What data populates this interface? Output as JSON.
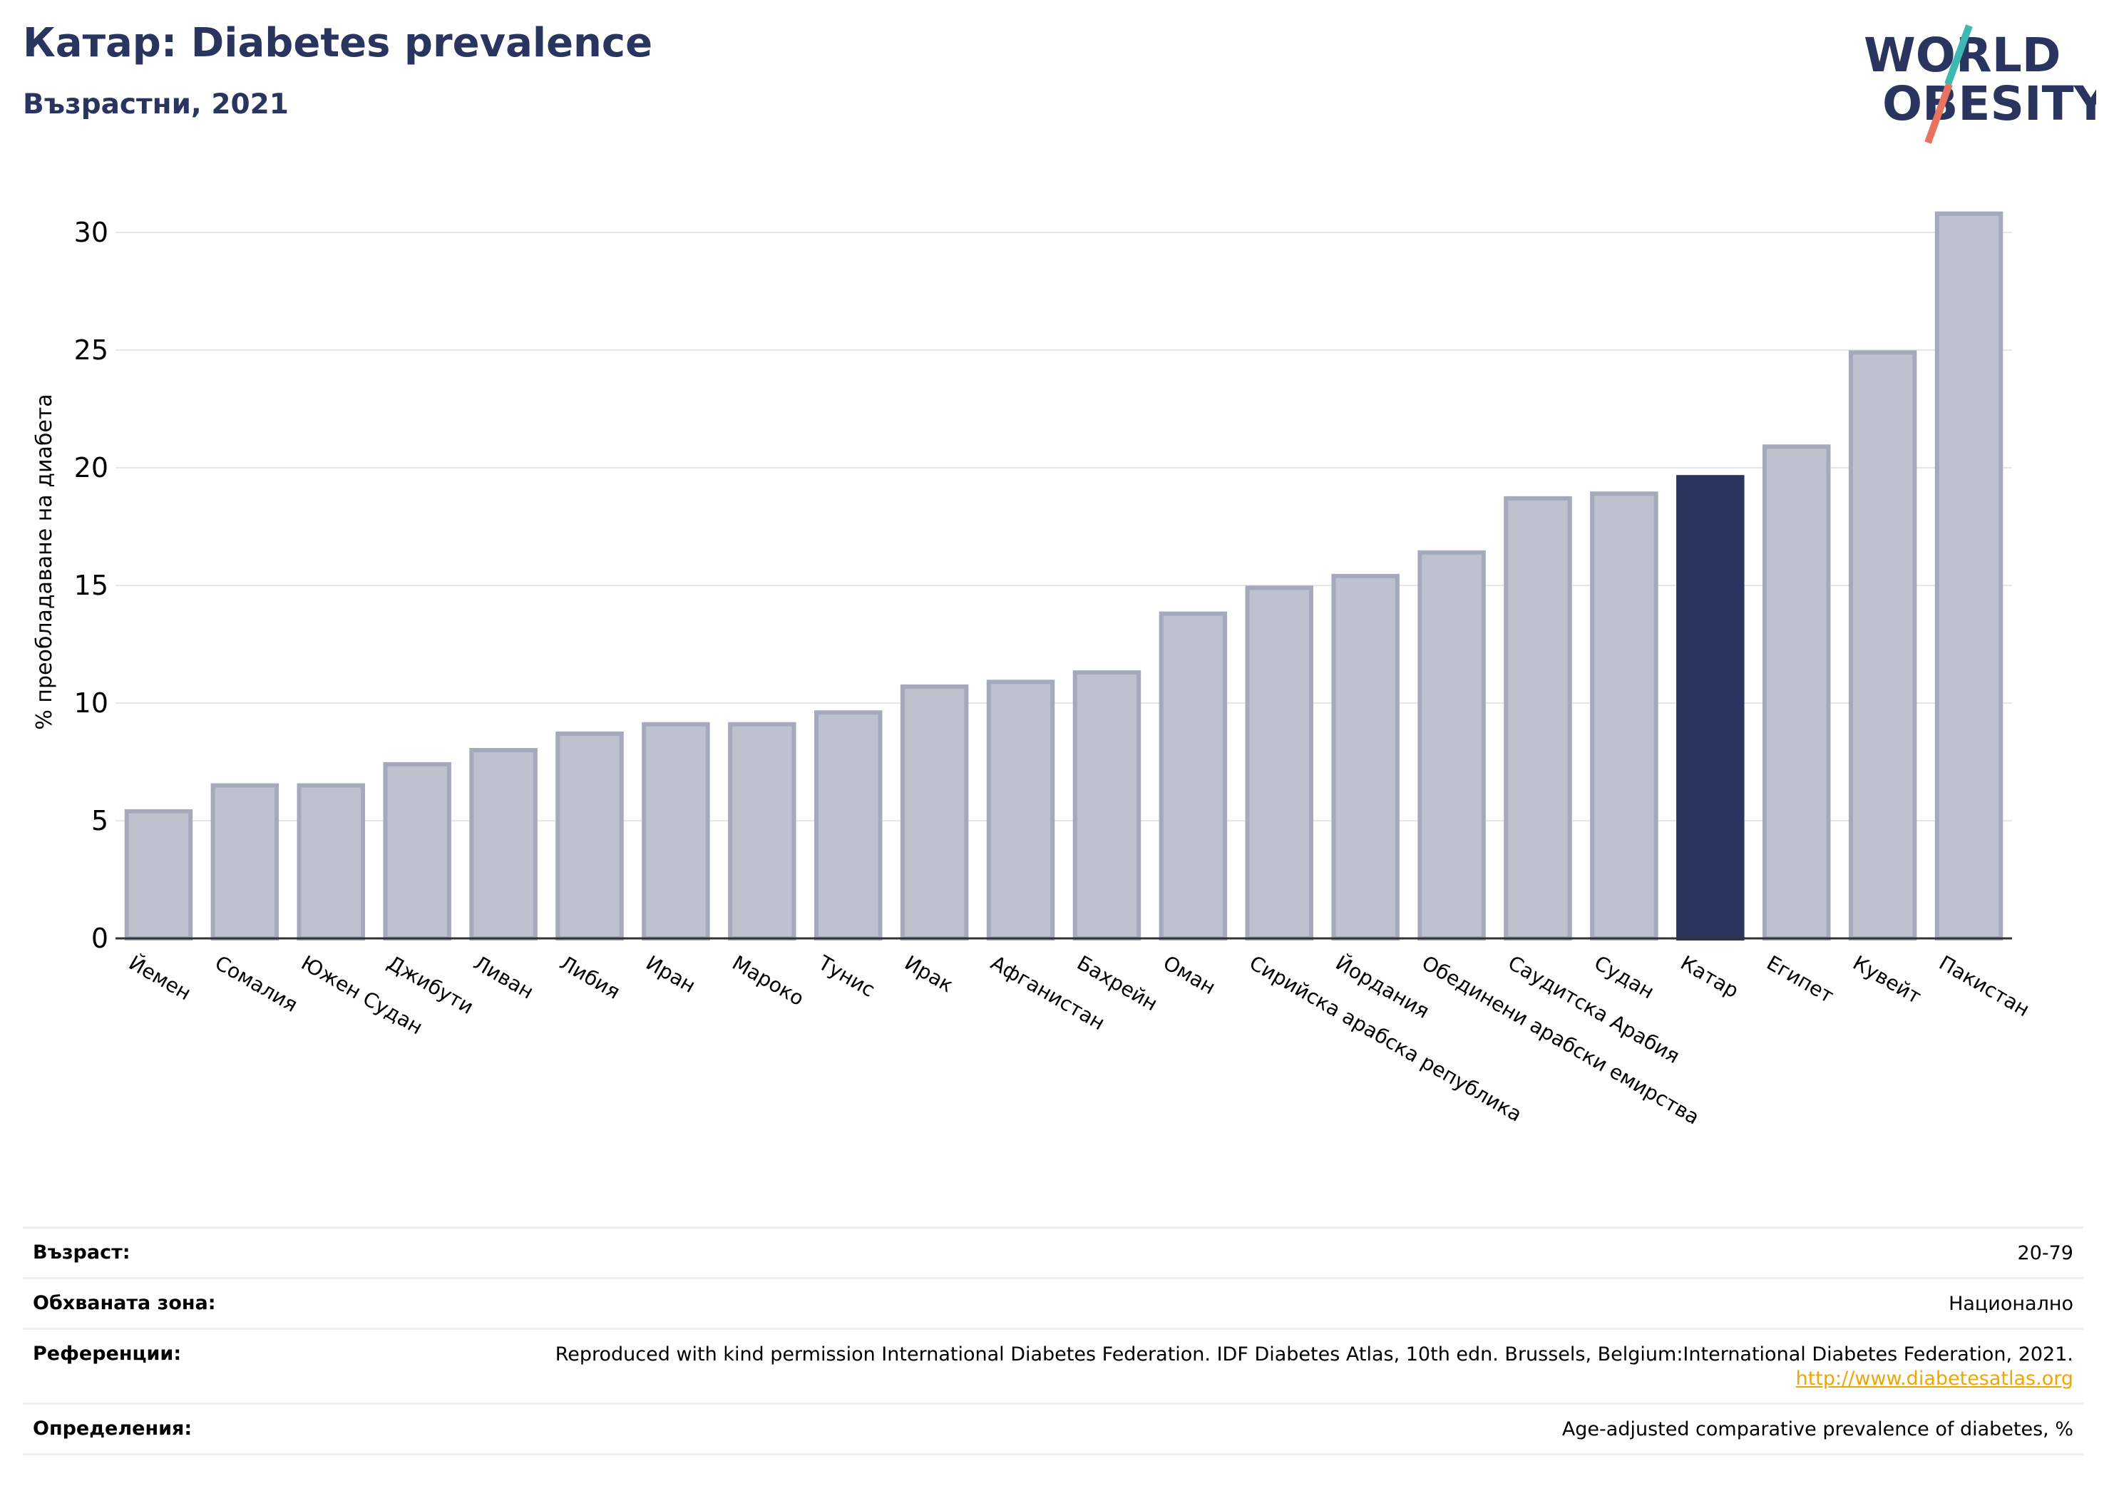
{
  "header": {
    "title": "Катар: Diabetes prevalence",
    "subtitle": "Възрастни, 2021"
  },
  "logo": {
    "line1": "WORLD",
    "line2": "OBESITY"
  },
  "colors": {
    "highlight": "#2a355f",
    "bar_fill": "#bec1ce",
    "bar_stroke": "#a4a9bc",
    "grid": "#e6e6ea",
    "axis": "#333333",
    "title": "#2a355f",
    "link": "#f0a500",
    "logo_teal": "#3bb9b2",
    "logo_coral": "#e8735f"
  },
  "chart_data": {
    "type": "bar",
    "ylabel": "% преобладаване на диабета",
    "ylim": [
      0,
      32
    ],
    "yticks": [
      0,
      5,
      10,
      15,
      20,
      25,
      30
    ],
    "grid": true,
    "highlight": "Катар",
    "categories": [
      "Йемен",
      "Сомалия",
      "Южен Судан",
      "Джибути",
      "Ливан",
      "Либия",
      "Иран",
      "Мароко",
      "Тунис",
      "Ирак",
      "Афганистан",
      "Бахрейн",
      "Оман",
      "Сирийска арабска република",
      "Йордания",
      "Обединени арабски емирства",
      "Саудитска Арабия",
      "Судан",
      "Катар",
      "Египет",
      "Кувейт",
      "Пакистан"
    ],
    "values": [
      5.4,
      6.5,
      6.5,
      7.4,
      8.0,
      8.7,
      9.1,
      9.1,
      9.6,
      10.7,
      10.9,
      11.3,
      13.8,
      14.9,
      15.4,
      16.4,
      18.7,
      18.9,
      19.6,
      20.9,
      24.9,
      30.8
    ]
  },
  "info": {
    "age_label": "Възраст:",
    "age_value": "20-79",
    "coverage_label": "Обхваната зона:",
    "coverage_value": "Национално",
    "references_label": "Референции:",
    "references_value": "Reproduced with kind permission International Diabetes Federation.  IDF Diabetes Atlas, 10th edn. Brussels, Belgium:International Diabetes Federation, 2021.",
    "references_link": "http://www.diabetesatlas.org",
    "definitions_label": "Определения:",
    "definitions_value": "Age-adjusted comparative prevalence of diabetes, %"
  }
}
